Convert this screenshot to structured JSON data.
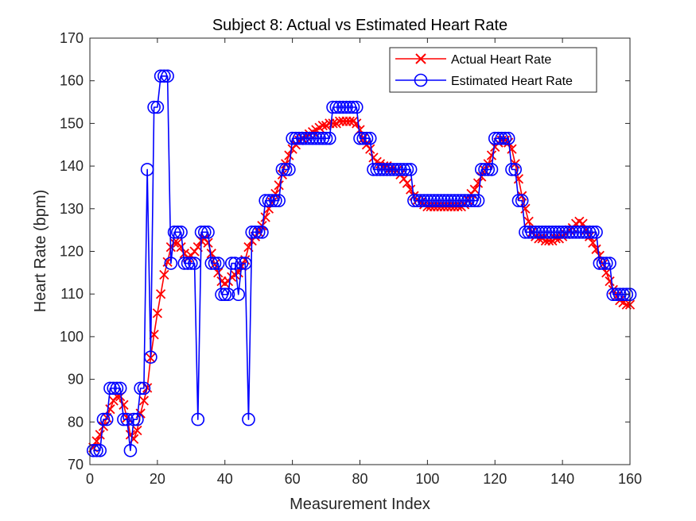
{
  "chart_data": {
    "type": "line",
    "title": "Subject 8: Actual vs Estimated Heart Rate",
    "xlabel": "Measurement Index",
    "ylabel": "Heart Rate (bpm)",
    "xlim": [
      0,
      160
    ],
    "ylim": [
      70,
      170
    ],
    "xticks": [
      0,
      20,
      40,
      60,
      80,
      100,
      120,
      140,
      160
    ],
    "yticks": [
      70,
      80,
      90,
      100,
      110,
      120,
      130,
      140,
      150,
      160,
      170
    ],
    "grid": false,
    "legend_position": "top-right",
    "x": [
      1,
      2,
      3,
      4,
      5,
      6,
      7,
      8,
      9,
      10,
      11,
      12,
      13,
      14,
      15,
      16,
      17,
      18,
      19,
      20,
      21,
      22,
      23,
      24,
      25,
      26,
      27,
      28,
      29,
      30,
      31,
      32,
      33,
      34,
      35,
      36,
      37,
      38,
      39,
      40,
      41,
      42,
      43,
      44,
      45,
      46,
      47,
      48,
      49,
      50,
      51,
      52,
      53,
      54,
      55,
      56,
      57,
      58,
      59,
      60,
      61,
      62,
      63,
      64,
      65,
      66,
      67,
      68,
      69,
      70,
      71,
      72,
      73,
      74,
      75,
      76,
      77,
      78,
      79,
      80,
      81,
      82,
      83,
      84,
      85,
      86,
      87,
      88,
      89,
      90,
      91,
      92,
      93,
      94,
      95,
      96,
      97,
      98,
      99,
      100,
      101,
      102,
      103,
      104,
      105,
      106,
      107,
      108,
      109,
      110,
      111,
      112,
      113,
      114,
      115,
      116,
      117,
      118,
      119,
      120,
      121,
      122,
      123,
      124,
      125,
      126,
      127,
      128,
      129,
      130,
      131,
      132,
      133,
      134,
      135,
      136,
      137,
      138,
      139,
      140,
      141,
      142,
      143,
      144,
      145,
      146,
      147,
      148,
      149,
      150,
      151,
      152,
      153,
      154,
      155,
      156,
      157,
      158,
      159,
      160
    ],
    "series": [
      {
        "name": "Actual Heart Rate",
        "color": "#ff0000",
        "marker": "x",
        "values": [
          74,
          75.5,
          77,
          79,
          81,
          83,
          85,
          86,
          86,
          84,
          81,
          77,
          76,
          78,
          82,
          85,
          88,
          95,
          100.5,
          105.5,
          110,
          114.5,
          117.5,
          121,
          122,
          122,
          121,
          119.5,
          118.5,
          119,
          120,
          121,
          122.5,
          123,
          122,
          119.5,
          117,
          115,
          113,
          112.5,
          113,
          114,
          114.5,
          115,
          116.5,
          118,
          121,
          122.5,
          123.5,
          124.5,
          126,
          128,
          130,
          131.5,
          133.5,
          135.5,
          138,
          140.5,
          142.5,
          144,
          145,
          146,
          146.5,
          147,
          147.5,
          148,
          148.5,
          149,
          149.5,
          149.5,
          150,
          150,
          150,
          150.5,
          150.5,
          150.5,
          150.5,
          150.5,
          150,
          148.5,
          146.5,
          145,
          144,
          142,
          141,
          140.5,
          140,
          140,
          139.5,
          139.5,
          139,
          138,
          137,
          136,
          134.5,
          133,
          132,
          131.5,
          131,
          130.5,
          130.5,
          130.5,
          130.5,
          130.5,
          130.5,
          130.5,
          130.5,
          130.5,
          130.5,
          130.5,
          131,
          132,
          133.5,
          134.5,
          136,
          137.5,
          139,
          140.5,
          142.5,
          144.5,
          145.5,
          146,
          146,
          145.5,
          144,
          140.5,
          137,
          133,
          130,
          127,
          124.5,
          123.5,
          123,
          123,
          122.5,
          122.5,
          122.5,
          123,
          123,
          123.5,
          124,
          125,
          125.5,
          126.5,
          127,
          126.5,
          125,
          123.5,
          122,
          120.5,
          119,
          117,
          115,
          113,
          111,
          109.5,
          108.5,
          108,
          107.5,
          107.5
        ]
      },
      {
        "name": "Estimated Heart Rate",
        "color": "#0000ff",
        "marker": "o",
        "values": [
          73.3,
          73.3,
          73.3,
          80.6,
          80.6,
          87.9,
          87.9,
          87.9,
          87.9,
          80.6,
          80.6,
          73.3,
          80.6,
          80.6,
          87.9,
          87.9,
          139.2,
          95.2,
          153.8,
          153.8,
          161.1,
          161.1,
          161.1,
          117.2,
          124.5,
          124.5,
          124.5,
          117.2,
          117.2,
          117.2,
          117.2,
          80.6,
          124.5,
          124.5,
          124.5,
          117.2,
          117.2,
          117.2,
          109.9,
          109.9,
          109.9,
          117.2,
          117.2,
          109.9,
          117.2,
          117.2,
          80.6,
          124.5,
          124.5,
          124.5,
          124.5,
          131.9,
          131.9,
          131.9,
          131.9,
          131.9,
          139.2,
          139.2,
          139.2,
          146.5,
          146.5,
          146.5,
          146.5,
          146.5,
          146.5,
          146.5,
          146.5,
          146.5,
          146.5,
          146.5,
          146.5,
          153.8,
          153.8,
          153.8,
          153.8,
          153.8,
          153.8,
          153.8,
          153.8,
          146.5,
          146.5,
          146.5,
          146.5,
          139.2,
          139.2,
          139.2,
          139.2,
          139.2,
          139.2,
          139.2,
          139.2,
          139.2,
          139.2,
          139.2,
          139.2,
          131.9,
          131.9,
          131.9,
          131.9,
          131.9,
          131.9,
          131.9,
          131.9,
          131.9,
          131.9,
          131.9,
          131.9,
          131.9,
          131.9,
          131.9,
          131.9,
          131.9,
          131.9,
          131.9,
          131.9,
          139.2,
          139.2,
          139.2,
          139.2,
          146.5,
          146.5,
          146.5,
          146.5,
          146.5,
          139.2,
          139.2,
          131.9,
          131.9,
          124.5,
          124.5,
          124.5,
          124.5,
          124.5,
          124.5,
          124.5,
          124.5,
          124.5,
          124.5,
          124.5,
          124.5,
          124.5,
          124.5,
          124.5,
          124.5,
          124.5,
          124.5,
          124.5,
          124.5,
          124.5,
          124.5,
          117.2,
          117.2,
          117.2,
          117.2,
          109.9,
          109.9,
          109.9,
          109.9,
          109.9,
          109.9
        ]
      }
    ]
  }
}
